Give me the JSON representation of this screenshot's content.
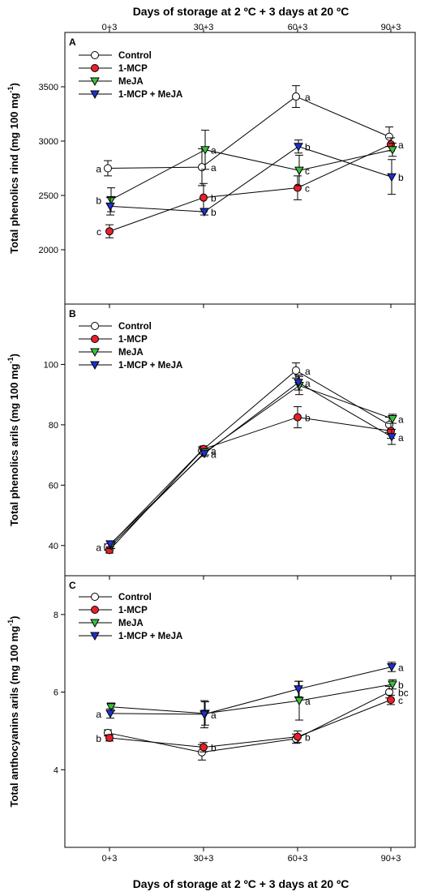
{
  "figure": {
    "top_axis_label": "Days of storage at 2 ºC + 3 days at 20 ºC",
    "bottom_axis_label": "Days of storage at 2 ºC + 3 days at 20 ºC",
    "x_tick_labels": [
      "0+3",
      "30+3",
      "60+3",
      "90+3"
    ]
  },
  "legend_entries": [
    {
      "name": "Control",
      "marker": "circle",
      "fill": "#ffffff"
    },
    {
      "name": "1-MCP",
      "marker": "circle",
      "fill": "#e8202a"
    },
    {
      "name": "MeJA",
      "marker": "triangle-down",
      "fill": "#39c23a"
    },
    {
      "name": "1-MCP + MeJA",
      "marker": "triangle-down",
      "fill": "#1f2fd0"
    }
  ],
  "chart_data": [
    {
      "panel": "A",
      "type": "line",
      "x": [
        "0+3",
        "30+3",
        "60+3",
        "90+3"
      ],
      "ylabel": "Total phenolics rind (mg 100 mg",
      "ylabel_sup": "-1",
      "ylabel_close": ")",
      "ylim": [
        1500,
        4000
      ],
      "yticks": [
        2000,
        2500,
        3000,
        3500
      ],
      "series": [
        {
          "name": "Control",
          "values": [
            2750,
            2760,
            3410,
            3040
          ],
          "errors": [
            70,
            170,
            100,
            90
          ],
          "letters": [
            "a",
            "a",
            "a",
            ""
          ]
        },
        {
          "name": "1-MCP",
          "values": [
            2170,
            2480,
            2570,
            2970
          ],
          "errors": [
            60,
            130,
            110,
            60
          ],
          "letters": [
            "c",
            "b",
            "c",
            "a"
          ]
        },
        {
          "name": "MeJA",
          "values": [
            2460,
            2920,
            2730,
            2920
          ],
          "errors": [
            110,
            180,
            140,
            60
          ],
          "letters": [
            "b",
            "a",
            "c",
            ""
          ]
        },
        {
          "name": "1-MCP + MeJA",
          "values": [
            2400,
            2350,
            2950,
            2670
          ],
          "errors": [
            80,
            30,
            60,
            160
          ],
          "letters": [
            "",
            "b",
            "b",
            "b"
          ]
        }
      ]
    },
    {
      "panel": "B",
      "type": "line",
      "x": [
        "0+3",
        "30+3",
        "60+3",
        "90+3"
      ],
      "ylabel": "Total phenolics arils (mg 100 mg",
      "ylabel_sup": "-1",
      "ylabel_close": ")",
      "ylim": [
        30,
        120
      ],
      "yticks": [
        40,
        60,
        80,
        100
      ],
      "series": [
        {
          "name": "Control",
          "values": [
            39.5,
            71.5,
            98,
            80
          ],
          "errors": [
            1,
            1.2,
            2.5,
            2.5
          ],
          "letters": [
            "a",
            "a",
            "a",
            ""
          ]
        },
        {
          "name": "1-MCP",
          "values": [
            38.5,
            72,
            82.5,
            78
          ],
          "errors": [
            1,
            1,
            3.5,
            2.5
          ],
          "letters": [
            "",
            "",
            "b",
            ""
          ]
        },
        {
          "name": "MeJA",
          "values": [
            40,
            71,
            93,
            82
          ],
          "errors": [
            1,
            1,
            3,
            1.5
          ],
          "letters": [
            "",
            "",
            "",
            "a"
          ]
        },
        {
          "name": "1-MCP + MeJA",
          "values": [
            40.5,
            70.5,
            94,
            76
          ],
          "errors": [
            1,
            1,
            2.5,
            2.5
          ],
          "letters": [
            "",
            "a",
            "a",
            "a"
          ]
        }
      ]
    },
    {
      "panel": "C",
      "type": "line",
      "x": [
        "0+3",
        "30+3",
        "60+3",
        "90+3"
      ],
      "ylabel": "Total anthocyanins arils (mg 100 mg",
      "ylabel_sup": "-1",
      "ylabel_close": ")",
      "ylim": [
        2,
        9
      ],
      "yticks": [
        4,
        6,
        8
      ],
      "series": [
        {
          "name": "Control",
          "values": [
            4.95,
            4.45,
            4.8,
            6.0
          ],
          "errors": [
            0.08,
            0.2,
            0.12,
            0.15
          ],
          "letters": [
            "",
            "",
            "",
            "bc"
          ]
        },
        {
          "name": "1-MCP",
          "values": [
            4.82,
            4.58,
            4.85,
            5.8
          ],
          "errors": [
            0.08,
            0.12,
            0.15,
            0.12
          ],
          "letters": [
            "b",
            "b",
            "b",
            "c"
          ]
        },
        {
          "name": "MeJA",
          "values": [
            5.62,
            5.45,
            5.78,
            6.2
          ],
          "errors": [
            0.1,
            0.3,
            0.5,
            0.12
          ],
          "letters": [
            "",
            "",
            "a",
            "b"
          ]
        },
        {
          "name": "1-MCP + MeJA",
          "values": [
            5.45,
            5.43,
            6.08,
            6.65
          ],
          "errors": [
            0.12,
            0.35,
            0.2,
            0.12
          ],
          "letters": [
            "a",
            "a",
            "",
            "a"
          ]
        }
      ]
    }
  ]
}
